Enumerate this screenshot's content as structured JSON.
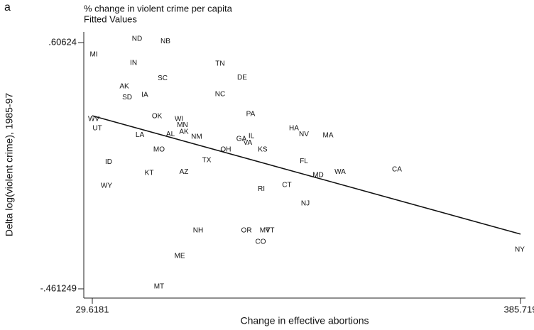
{
  "panel_label": "a",
  "chart_data": {
    "type": "scatter",
    "ylabel": "Delta log(violent crime), 1985-97",
    "xlabel": "Change in effective abortions",
    "xlim": [
      22.53,
      389.85
    ],
    "ylim": [
      -0.5012,
      0.6524
    ],
    "xticks": [
      29.6181,
      385.719
    ],
    "yticks": [
      {
        "value": 0.60624,
        "label": ".60624"
      },
      {
        "value": -0.461249,
        "label": "-.461249"
      }
    ],
    "series": [
      {
        "name": "% change in violent crime per capita",
        "color": "#111",
        "labels": [
          "ND",
          "NB",
          "MI",
          "IN",
          "TN",
          "SC",
          "DE",
          "AK",
          "SD",
          "IA",
          "NC",
          "OK",
          "PA",
          "WV",
          "WI",
          "MN",
          "UT",
          "HA",
          "NV",
          "MA",
          "LA",
          "AL",
          "AK",
          "NM",
          "GA",
          "IL",
          "VA",
          "MO",
          "OH",
          "KS",
          "TX",
          "FL",
          "ID",
          "CA",
          "WA",
          "MD",
          "KT",
          "AZ",
          "WY",
          "CT",
          "RI",
          "NJ",
          "NH",
          "OR",
          "MT",
          "VT",
          "CO",
          "ME",
          "NY",
          "MT"
        ],
        "x": [
          66.8,
          90.4,
          30.8,
          63.9,
          135.9,
          88.1,
          154.2,
          56.2,
          58.6,
          73.3,
          135.9,
          83.4,
          161.3,
          30.8,
          101.7,
          104.6,
          33.8,
          197.3,
          205.6,
          225.7,
          69.2,
          94.6,
          105.8,
          116.4,
          153.6,
          161.9,
          158.9,
          85.1,
          140.6,
          171.3,
          124.7,
          205.6,
          43.2,
          282.96,
          235.7,
          217.4,
          76.9,
          105.8,
          41.4,
          191.4,
          170.2,
          206.8,
          117.6,
          157.8,
          173.1,
          177.3,
          169.6,
          102.3,
          385.1,
          85.1
        ],
        "values": [
          0.622,
          0.612,
          0.554,
          0.517,
          0.514,
          0.452,
          0.455,
          0.416,
          0.369,
          0.379,
          0.382,
          0.286,
          0.296,
          0.274,
          0.274,
          0.249,
          0.234,
          0.234,
          0.209,
          0.203,
          0.206,
          0.209,
          0.219,
          0.197,
          0.188,
          0.2,
          0.172,
          0.142,
          0.142,
          0.142,
          0.096,
          0.092,
          0.089,
          0.056,
          0.046,
          0.031,
          0.04,
          0.046,
          -0.015,
          -0.012,
          -0.028,
          -0.092,
          -0.209,
          -0.209,
          -0.209,
          -0.209,
          -0.258,
          -0.32,
          -0.292,
          -0.452
        ]
      },
      {
        "name": "Fitted Values",
        "color": "#111",
        "x": [
          29.6181,
          385.719
        ],
        "values": [
          0.289,
          -0.224
        ]
      }
    ]
  }
}
